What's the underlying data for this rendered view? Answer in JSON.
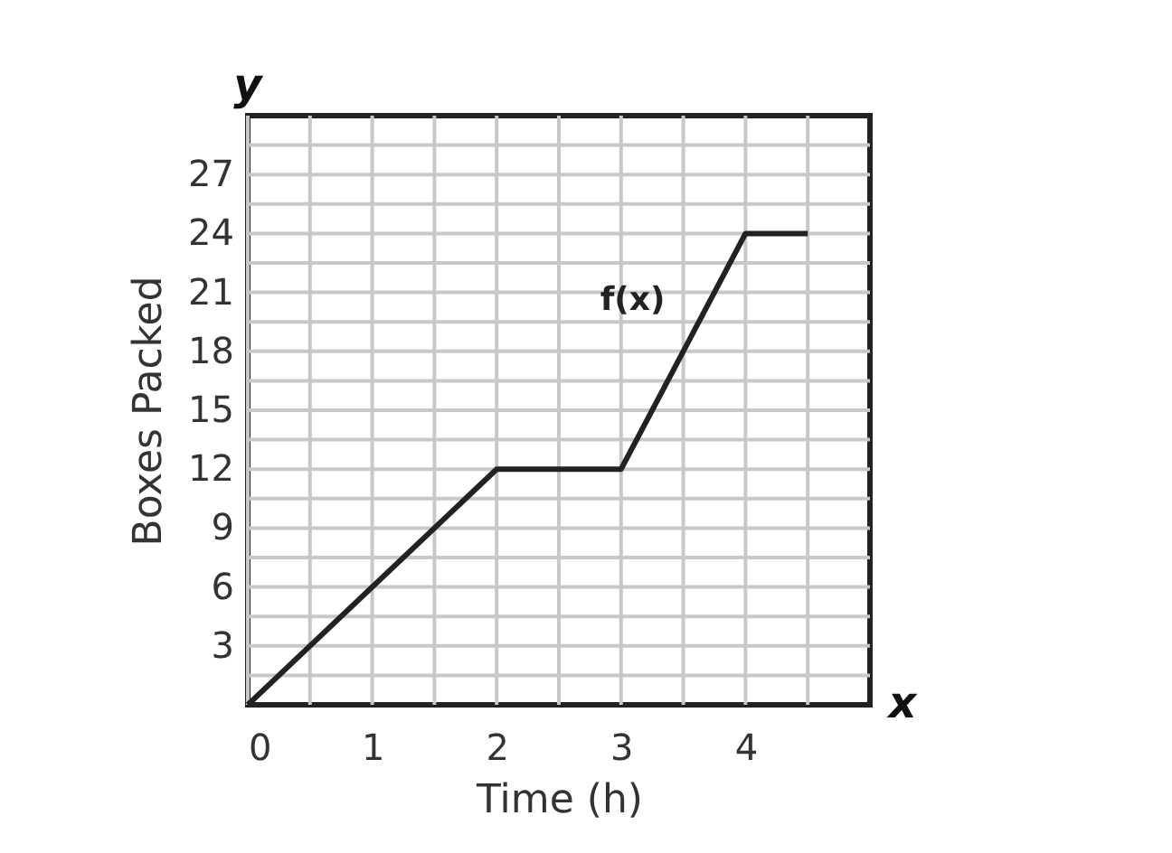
{
  "chart_data": {
    "type": "line",
    "xlabel": "Time (h)",
    "ylabel": "Boxes Packed",
    "x": [
      0,
      2,
      3,
      4,
      4.5
    ],
    "series": [
      {
        "name": "f(x)",
        "color": "#222222",
        "values": [
          0,
          12,
          12,
          24,
          24
        ]
      }
    ],
    "xlim": [
      0,
      5
    ],
    "ylim": [
      0,
      30
    ],
    "xticks": [
      0,
      {
        "value": 0.5,
        "label": null
      },
      1,
      {
        "value": 1.5,
        "label": null
      },
      2,
      {
        "value": 2.5,
        "label": null
      },
      3,
      {
        "value": 3.5,
        "label": null
      },
      4,
      {
        "value": 4.5,
        "label": null
      }
    ],
    "yticks": [
      {
        "value": 1.5,
        "label": null
      },
      3,
      {
        "value": 4.5,
        "label": null
      },
      6,
      {
        "value": 7.5,
        "label": null
      },
      9,
      {
        "value": 10.5,
        "label": null
      },
      12,
      {
        "value": 13.5,
        "label": null
      },
      15,
      {
        "value": 16.5,
        "label": null
      },
      18,
      {
        "value": 19.5,
        "label": null
      },
      21,
      {
        "value": 22.5,
        "label": null
      },
      24,
      {
        "value": 25.5,
        "label": null
      },
      27,
      {
        "value": 28.5,
        "label": null
      }
    ],
    "grid": true,
    "marker": "none",
    "line_style": "solid",
    "annotations": [
      "y",
      "x"
    ]
  }
}
